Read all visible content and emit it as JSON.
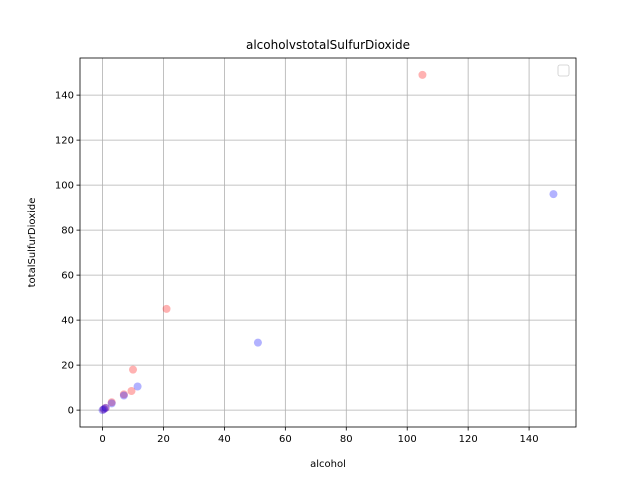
{
  "chart_data": {
    "type": "scatter",
    "title": "alcoholvstotalSulfurDioxide",
    "xlabel": "alcohol",
    "ylabel": "totalSulfurDioxide",
    "xlim": [
      -7.4,
      155.4
    ],
    "ylim": [
      -7.5,
      156.5
    ],
    "xticks": [
      0,
      20,
      40,
      60,
      80,
      100,
      120,
      140
    ],
    "yticks": [
      0,
      20,
      40,
      60,
      80,
      100,
      120,
      140
    ],
    "xtick_labels": [
      "0",
      "20",
      "40",
      "60",
      "80",
      "100",
      "120",
      "140"
    ],
    "ytick_labels": [
      "0",
      "20",
      "40",
      "60",
      "80",
      "100",
      "120",
      "140"
    ],
    "grid": true,
    "legend": {
      "placement": "top-right",
      "entries": []
    },
    "point_alpha": 0.3,
    "series": [
      {
        "color": "#ff0000",
        "points": [
          {
            "x": 105,
            "y": 149
          },
          {
            "x": 21,
            "y": 45
          },
          {
            "x": 10,
            "y": 18
          },
          {
            "x": 9.5,
            "y": 8.5
          },
          {
            "x": 7,
            "y": 7
          },
          {
            "x": 3,
            "y": 3.5
          },
          {
            "x": 1,
            "y": 1
          },
          {
            "x": 0.3,
            "y": 0.3
          }
        ]
      },
      {
        "color": "#0000ff",
        "points": [
          {
            "x": 148,
            "y": 96
          },
          {
            "x": 51,
            "y": 30
          },
          {
            "x": 11.5,
            "y": 10.5
          },
          {
            "x": 7,
            "y": 6.5
          },
          {
            "x": 3,
            "y": 3
          },
          {
            "x": 1,
            "y": 1
          },
          {
            "x": 0.5,
            "y": 0.5
          },
          {
            "x": 0,
            "y": 0
          }
        ]
      }
    ]
  }
}
